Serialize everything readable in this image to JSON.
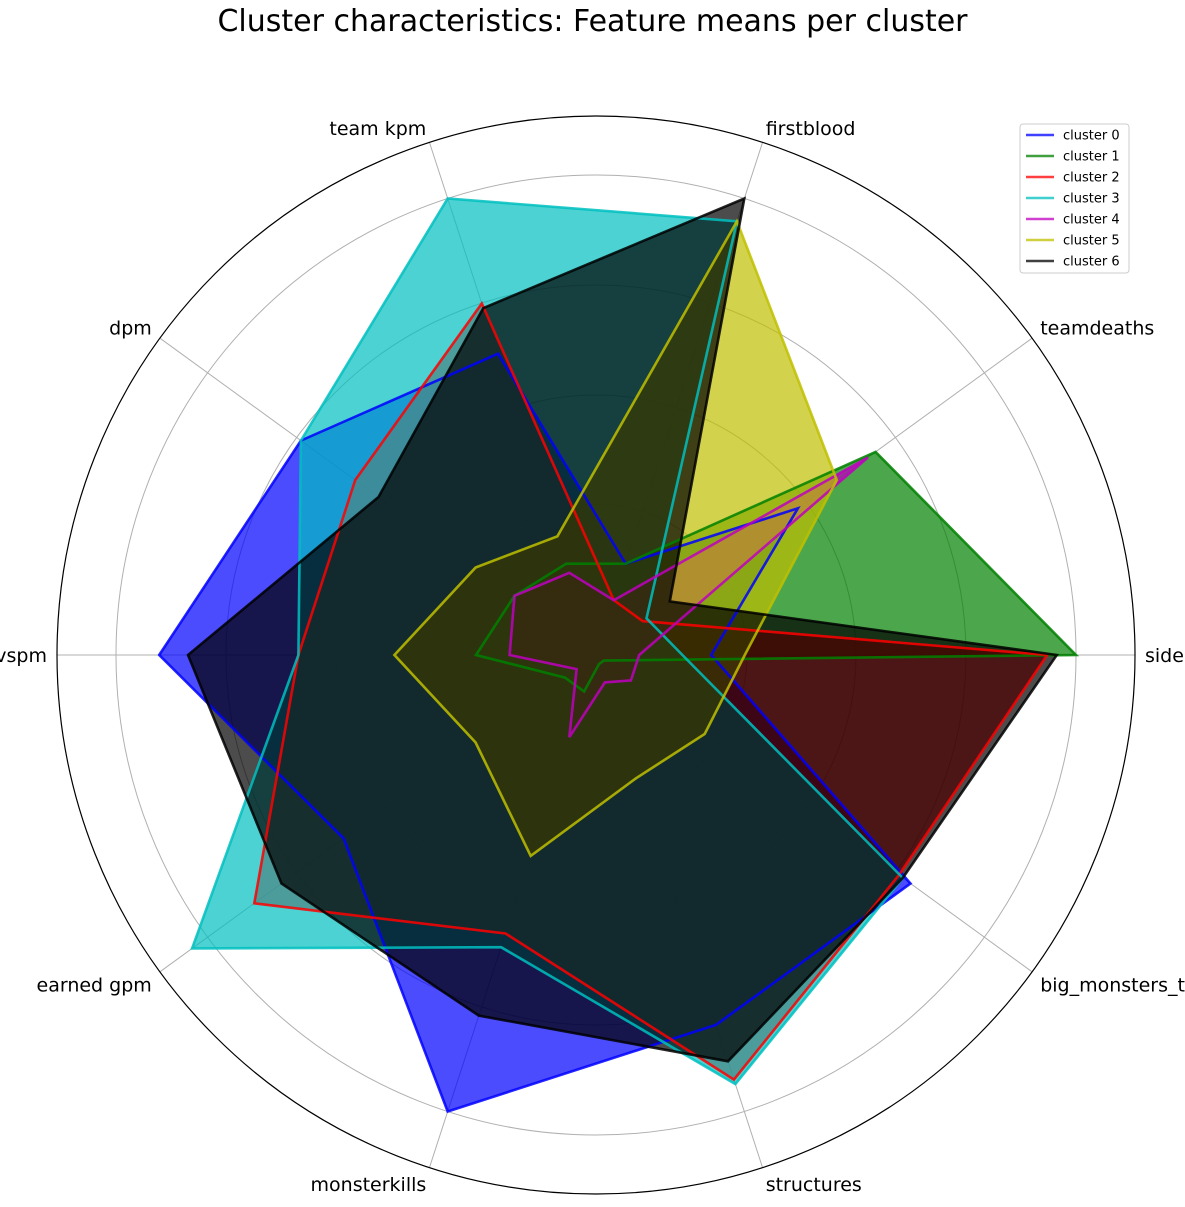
{
  "chart_data": {
    "type": "radar",
    "title": "Cluster characteristics: Feature means per cluster",
    "axes": [
      "side",
      "teamdeaths",
      "firstblood",
      "team kpm",
      "dpm",
      "vspm",
      "earned gpm",
      "monsterkills",
      "structures",
      "big_monsters_taken"
    ],
    "rlim": [
      0,
      1
    ],
    "grid": true,
    "legend_position": "top-right",
    "series": [
      {
        "name": "cluster 0",
        "color": "#0000ff",
        "values": [
          0.24,
          0.52,
          0.2,
          0.66,
          0.76,
          0.91,
          0.65,
          1.0,
          0.81,
          0.81
        ]
      },
      {
        "name": "cluster 1",
        "color": "#008000",
        "values": [
          1.0,
          0.72,
          0.2,
          0.2,
          0.21,
          0.25,
          0.08,
          0.08,
          0.02,
          0.02
        ]
      },
      {
        "name": "cluster 2",
        "color": "#ff0000",
        "values": [
          0.94,
          0.12,
          0.12,
          0.77,
          0.62,
          0.62,
          0.88,
          0.61,
          0.93,
          0.78
        ]
      },
      {
        "name": "cluster 3",
        "color": "#00bfbf",
        "values": [
          0.18,
          0.13,
          0.95,
          1.0,
          0.76,
          0.62,
          1.04,
          0.64,
          0.94,
          0.79
        ]
      },
      {
        "name": "cluster 4",
        "color": "#bf00bf",
        "values": [
          0.09,
          0.7,
          0.12,
          0.18,
          0.21,
          0.18,
          0.05,
          0.18,
          0.06,
          0.09
        ]
      },
      {
        "name": "cluster 5",
        "color": "#bfbf00",
        "values": [
          0.31,
          0.62,
          0.95,
          0.26,
          0.31,
          0.42,
          0.31,
          0.44,
          0.27,
          0.28
        ]
      },
      {
        "name": "cluster 6",
        "color": "#000000",
        "values": [
          0.96,
          0.19,
          1.0,
          0.76,
          0.56,
          0.85,
          0.81,
          0.79,
          0.89,
          0.79
        ]
      }
    ]
  }
}
